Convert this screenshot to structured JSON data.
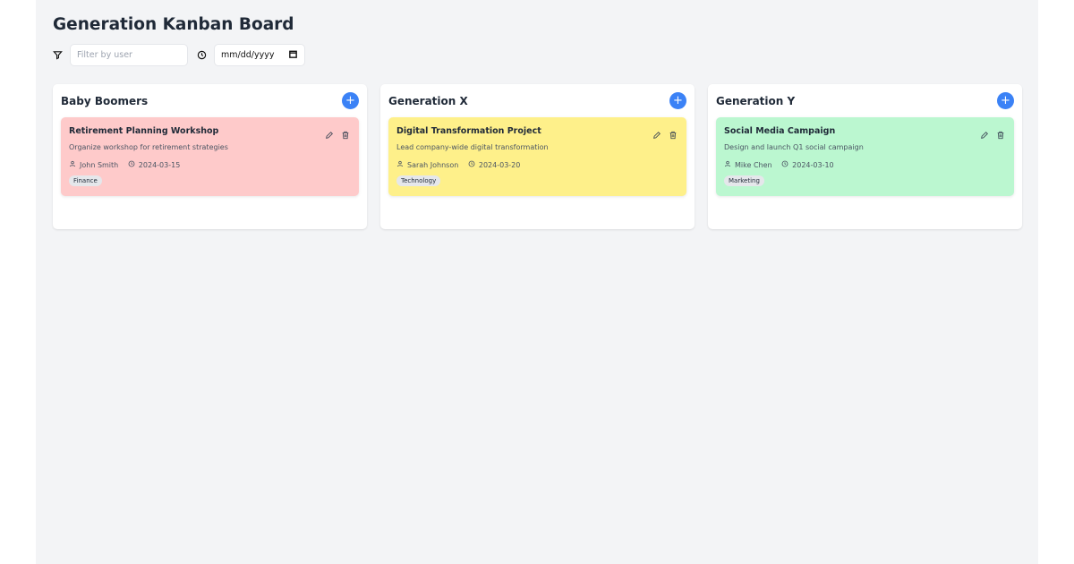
{
  "title": "Generation Kanban Board",
  "filters": {
    "user_placeholder": "Filter by user",
    "date_placeholder": "mm/dd/yyyy"
  },
  "columns": [
    {
      "title": "Baby Boomers",
      "add_label": "+",
      "cards": [
        {
          "title": "Retirement Planning Workshop",
          "description": "Organize workshop for retirement strategies",
          "user": "John Smith",
          "date": "2024-03-15",
          "tag": "Finance",
          "color": "#fecaca"
        }
      ]
    },
    {
      "title": "Generation X",
      "add_label": "+",
      "cards": [
        {
          "title": "Digital Transformation Project",
          "description": "Lead company-wide digital transformation",
          "user": "Sarah Johnson",
          "date": "2024-03-20",
          "tag": "Technology",
          "color": "#fef08a"
        }
      ]
    },
    {
      "title": "Generation Y",
      "add_label": "+",
      "cards": [
        {
          "title": "Social Media Campaign",
          "description": "Design and launch Q1 social campaign",
          "user": "Mike Chen",
          "date": "2024-03-10",
          "tag": "Marketing",
          "color": "#bbf7d0"
        }
      ]
    }
  ],
  "colors": {
    "accent": "#3b82f6",
    "background": "#f3f4f6"
  }
}
